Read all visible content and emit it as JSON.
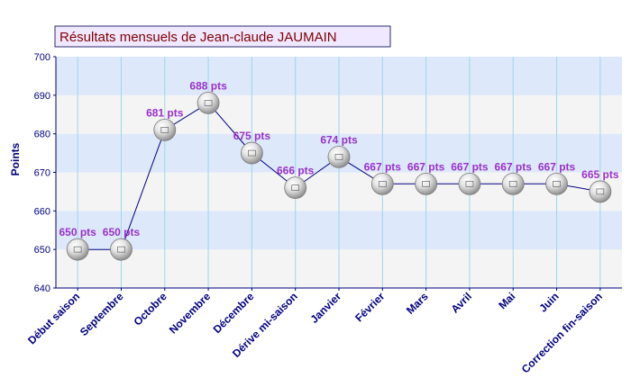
{
  "chart_data": {
    "type": "line",
    "title": "Résultats mensuels de Jean-claude JAUMAIN",
    "ylabel": "Points",
    "xlabel": "",
    "ylim": [
      640,
      700
    ],
    "yticks": [
      640,
      650,
      660,
      670,
      680,
      690,
      700
    ],
    "categories": [
      "Début saison",
      "Septembre",
      "Octobre",
      "Novembre",
      "Décembre",
      "Dérive mi-saison",
      "Janvier",
      "Février",
      "Mars",
      "Avril",
      "Mai",
      "Juin",
      "Correction fin-saison"
    ],
    "values": [
      650,
      650,
      681,
      688,
      675,
      666,
      674,
      667,
      667,
      667,
      667,
      667,
      665
    ],
    "data_labels": [
      "650 pts",
      "650 pts",
      "681 pts",
      "688 pts",
      "675 pts",
      "666 pts",
      "674 pts",
      "667 pts",
      "667 pts",
      "667 pts",
      "667 pts",
      "667 pts",
      "665 pts"
    ],
    "grid": true,
    "legend": "none",
    "colors": {
      "line": "#000080",
      "label": "#9932cc",
      "axis_text": "#000080",
      "title_text": "#800000",
      "band_blue": "#dde8fb",
      "band_gray": "#f4f4f4",
      "grid": "#9fd5ea"
    }
  }
}
